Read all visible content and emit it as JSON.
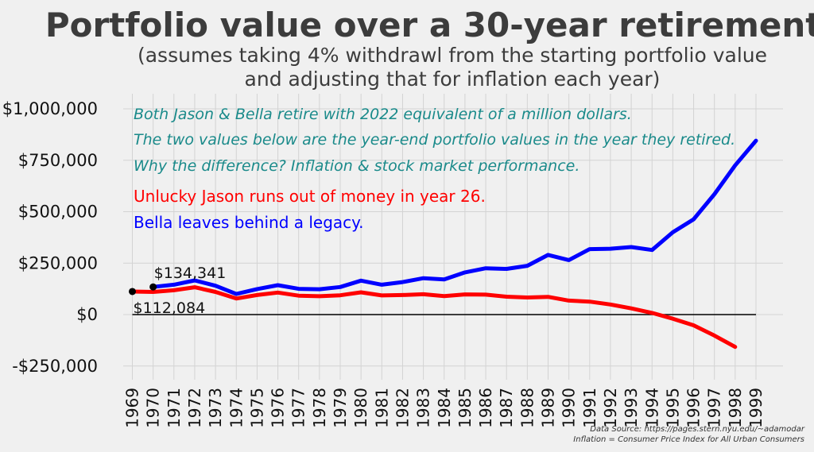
{
  "chart_data": {
    "type": "line",
    "title": "Portfolio value over a 30-year retirement...",
    "subtitle_line1": "(assumes taking 4% withdrawl from the starting portfolio value",
    "subtitle_line2": "and adjusting that for inflation each year)",
    "ylim": [
      -300000,
      1000000
    ],
    "yticks": [
      1000000,
      750000,
      500000,
      250000,
      0,
      -250000
    ],
    "ytick_labels": [
      "$1,000,000",
      "$750,000",
      "$500,000",
      "$250,000",
      "$0",
      "-$250,000"
    ],
    "grid": true,
    "series": [
      {
        "name": "Jason",
        "color": "#ff0000",
        "x": [
          1969,
          1970,
          1971,
          1972,
          1973,
          1974,
          1975,
          1976,
          1977,
          1978,
          1979,
          1980,
          1981,
          1982,
          1983,
          1984,
          1985,
          1986,
          1987,
          1988,
          1989,
          1990,
          1991,
          1992,
          1993,
          1994,
          1995,
          1996,
          1997,
          1998
        ],
        "values": [
          112084,
          110000,
          118000,
          133000,
          110000,
          78000,
          95000,
          107000,
          92000,
          89000,
          94000,
          108000,
          93000,
          95000,
          99000,
          90000,
          98000,
          97000,
          87000,
          83000,
          86000,
          68000,
          63000,
          49000,
          30000,
          8000,
          -20000,
          -52000,
          -102000,
          -157000
        ]
      },
      {
        "name": "Bella",
        "color": "#0000ff",
        "x": [
          1970,
          1971,
          1972,
          1973,
          1974,
          1975,
          1976,
          1977,
          1978,
          1979,
          1980,
          1981,
          1982,
          1983,
          1984,
          1985,
          1986,
          1987,
          1988,
          1989,
          1990,
          1991,
          1992,
          1993,
          1994,
          1995,
          1996,
          1997,
          1998,
          1999
        ],
        "values": [
          134341,
          145000,
          166000,
          140000,
          100000,
          124000,
          143000,
          125000,
          123000,
          134000,
          165000,
          145000,
          158000,
          177000,
          171000,
          205000,
          225000,
          222000,
          237000,
          290000,
          265000,
          318000,
          320000,
          328000,
          314000,
          400000,
          463000,
          585000,
          725000,
          845000
        ]
      }
    ],
    "point_labels": [
      {
        "x": 1969,
        "y": 112084,
        "text": "$112,084"
      },
      {
        "x": 1970,
        "y": 134341,
        "text": "$134,341"
      }
    ],
    "annotations": {
      "line1": "Both Jason & Bella retire with 2022 equivalent of a million dollars.",
      "line2": "The two values below are the year-end portfolio values in the year they retired.",
      "line3": "Why the difference? Inflation & stock market performance.",
      "jason": "Unlucky Jason runs out of money in year 26.",
      "bella": "Bella leaves behind a legacy."
    },
    "source_line1": "Data Source: https://pages.stern.nyu.edu/~adamodar",
    "source_line2": "Inflation = Consumer Price Index for All Urban Consumers"
  }
}
